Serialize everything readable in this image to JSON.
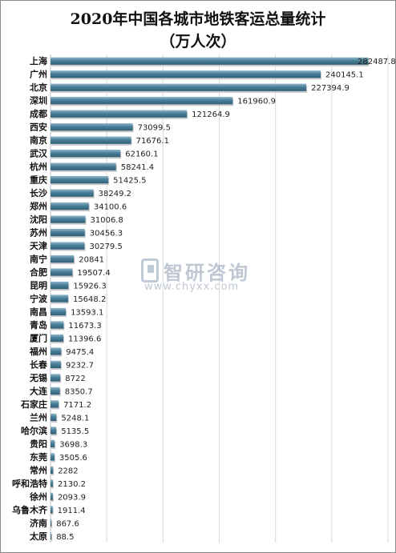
{
  "chart_data": {
    "type": "bar",
    "orientation": "horizontal",
    "title": "2020年中国各城市地铁客运总量统计",
    "subtitle": "（万人次）",
    "categories": [
      "上海",
      "广州",
      "北京",
      "深圳",
      "成都",
      "西安",
      "南京",
      "武汉",
      "杭州",
      "重庆",
      "长沙",
      "郑州",
      "沈阳",
      "苏州",
      "天津",
      "南宁",
      "合肥",
      "昆明",
      "宁波",
      "南昌",
      "青岛",
      "厦门",
      "福州",
      "长春",
      "无锡",
      "大连",
      "石家庄",
      "兰州",
      "哈尔滨",
      "贵阳",
      "东莞",
      "常州",
      "呼和浩特",
      "徐州",
      "乌鲁木齐",
      "济南",
      "太原"
    ],
    "values": [
      282487.8,
      240145.1,
      227394.9,
      161960.9,
      121264.9,
      73099.5,
      71676.1,
      62160.1,
      58241.4,
      51425.5,
      38249.2,
      34100.6,
      31006.8,
      30456.3,
      30279.5,
      20841,
      19507.4,
      15926.3,
      15648.2,
      13593.1,
      11673.3,
      11396.6,
      9475.4,
      9232.7,
      8722,
      8350.7,
      7171.2,
      5248.1,
      5135.5,
      3698.3,
      3505.6,
      2282,
      2130.2,
      2093.9,
      1911.4,
      867.6,
      88.5
    ],
    "value_labels": [
      "282487.8",
      "240145.1",
      "227394.9",
      "161960.9",
      "121264.9",
      "73099.5",
      "71676.1",
      "62160.1",
      "58241.4",
      "51425.5",
      "38249.2",
      "34100.6",
      "31006.8",
      "30456.3",
      "30279.5",
      "20841",
      "19507.4",
      "15926.3",
      "15648.2",
      "13593.1",
      "11673.3",
      "11396.6",
      "9475.4",
      "9232.7",
      "8722",
      "8350.7",
      "7171.2",
      "5248.1",
      "5135.5",
      "3698.3",
      "3505.6",
      "2282",
      "2130.2",
      "2093.9",
      "1911.4",
      "867.6",
      "88.5"
    ],
    "xlim": [
      0,
      300000
    ],
    "grid": true,
    "bar_color": "#4a7f99"
  },
  "watermark": {
    "name": "智研咨询",
    "url": "www.chyxx.com"
  }
}
